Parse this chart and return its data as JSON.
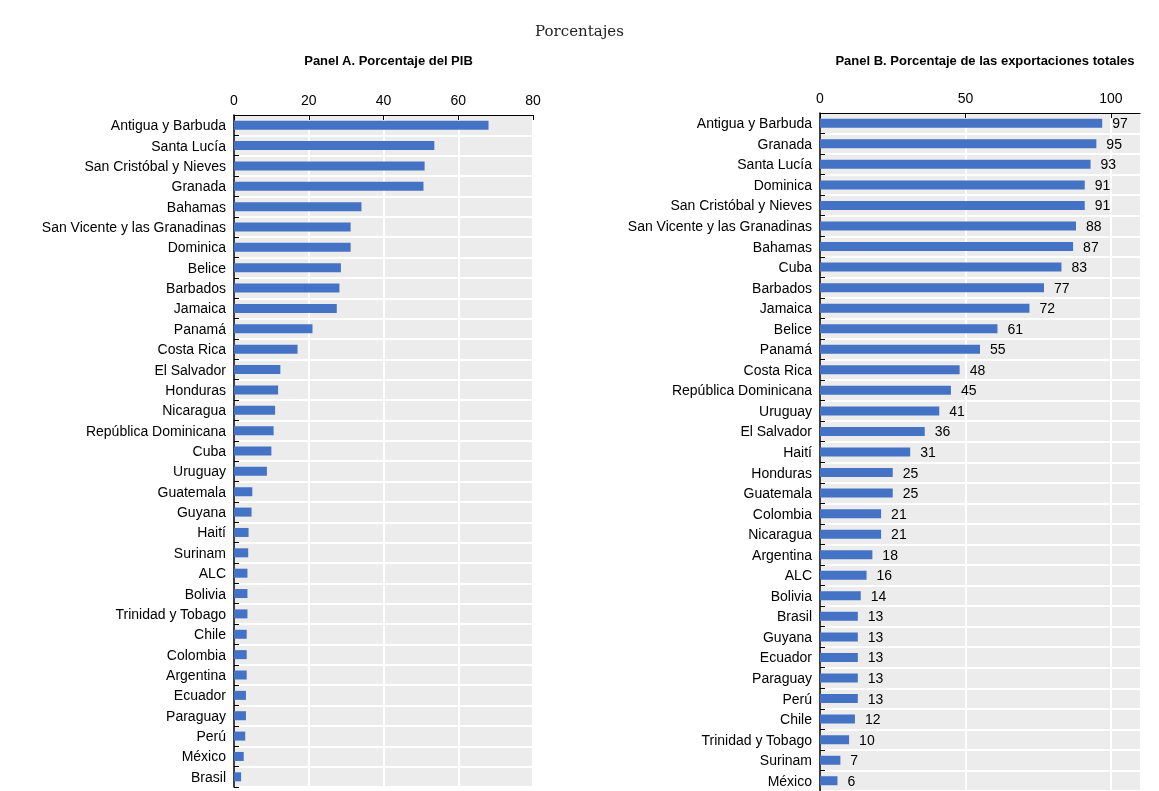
{
  "chart_data": [
    {
      "type": "bar",
      "orientation": "horizontal",
      "title": "Panel A. Porcentaje del PIB",
      "subtitle": "Porcentajes",
      "categories": [
        "Antigua y Barbuda",
        "Santa Lucía",
        "San Cristóbal y Nieves",
        "Granada",
        "Bahamas",
        "San Vicente y las Granadinas",
        "Dominica",
        "Belice",
        "Barbados",
        "Jamaica",
        "Panamá",
        "Costa Rica",
        "El Salvador",
        "Honduras",
        "Nicaragua",
        "República Dominicana",
        "Cuba",
        "Uruguay",
        "Guatemala",
        "Guyana",
        "Haití",
        "Surinam",
        "ALC",
        "Bolivia",
        "Trinidad y Tobago",
        "Chile",
        "Colombia",
        "Argentina",
        "Ecuador",
        "Paraguay",
        "Perú",
        "México",
        "Brasil"
      ],
      "values": [
        68.1,
        53.6,
        51.0,
        50.7,
        34.1,
        31.2,
        31.2,
        28.6,
        28.2,
        27.5,
        21.0,
        17.0,
        12.4,
        11.8,
        11.0,
        10.6,
        10.0,
        8.8,
        4.9,
        4.7,
        3.9,
        3.8,
        3.6,
        3.6,
        3.6,
        3.4,
        3.4,
        3.4,
        3.2,
        3.2,
        3.0,
        2.6,
        1.9
      ],
      "color": "#4472c4",
      "xlim": [
        0,
        80
      ],
      "xticks": [
        0,
        20,
        40,
        60,
        80
      ],
      "grid": true
    },
    {
      "type": "bar",
      "orientation": "horizontal",
      "title": "Panel B. Porcentaje de las exportaciones totales",
      "categories": [
        "Antigua y Barbuda",
        "Granada",
        "Santa Lucía",
        "Dominica",
        "San Cristóbal y Nieves",
        "San Vicente y las Granadinas",
        "Bahamas",
        "Cuba",
        "Barbados",
        "Jamaica",
        "Belice",
        "Panamá",
        "Costa Rica",
        "República Dominicana",
        "Uruguay",
        "El Salvador",
        "Haití",
        "Honduras",
        "Guatemala",
        "Colombia",
        "Nicaragua",
        "Argentina",
        "ALC",
        "Bolivia",
        "Brasil",
        "Guyana",
        "Ecuador",
        "Paraguay",
        "Perú",
        "Chile",
        "Trinidad y Tobago",
        "Surinam",
        "México"
      ],
      "values": [
        97,
        95,
        93,
        91,
        91,
        88,
        87,
        83,
        77,
        72,
        61,
        55,
        48,
        45,
        41,
        36,
        31,
        25,
        25,
        21,
        21,
        18,
        16,
        14,
        13,
        13,
        13,
        13,
        13,
        12,
        10,
        7,
        6
      ],
      "color": "#4472c4",
      "xlim": [
        0,
        110
      ],
      "xticks": [
        0,
        50,
        100
      ],
      "grid": true,
      "data_labels": true
    }
  ]
}
